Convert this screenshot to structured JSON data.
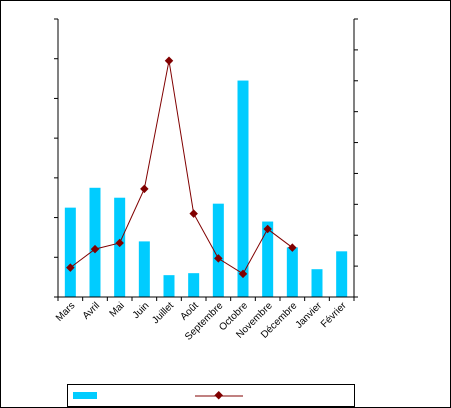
{
  "chart_data": {
    "type": "bar",
    "title": "",
    "xlabel": "",
    "ylabel_left": "",
    "ylabel_right": "",
    "categories": [
      "Mars",
      "Avril",
      "Mai",
      "Juin",
      "Juillet",
      "Août",
      "Septembre",
      "Octobre",
      "Novembre",
      "Décembre",
      "Janvier",
      "Février"
    ],
    "series": [
      {
        "type": "bar",
        "axis": "left",
        "values": [
          45,
          55,
          50,
          28,
          11,
          12,
          47,
          109,
          38,
          25,
          14,
          23
        ]
      },
      {
        "type": "line",
        "axis": "right",
        "values": [
          1.9,
          3.1,
          3.5,
          7.0,
          15.3,
          5.4,
          2.5,
          1.5,
          4.4,
          3.2,
          null,
          null
        ]
      }
    ],
    "ylim_left": [
      0,
      140
    ],
    "ylim_right": [
      0,
      18
    ],
    "left_tick_count": 7,
    "right_tick_count": 9,
    "grid": false,
    "legend_position": "bottom",
    "colors": {
      "bar": "#00ccff",
      "line": "#800000",
      "marker": "#800000",
      "axis": "#000000"
    }
  }
}
